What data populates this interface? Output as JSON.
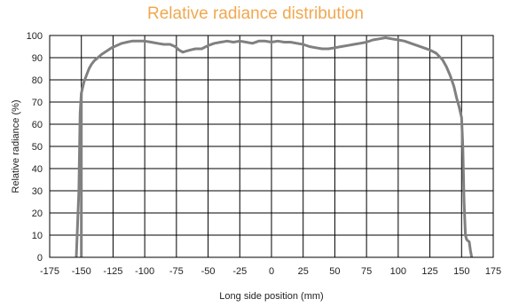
{
  "chart_data": {
    "type": "line",
    "title": "Relative radiance distribution",
    "xlabel": "Long side position (mm)",
    "ylabel": "Relative radiance (%)",
    "xlim": [
      -175,
      175
    ],
    "ylim": [
      0,
      100
    ],
    "xticks": [
      -175,
      -150,
      -125,
      -100,
      -75,
      -50,
      -25,
      0,
      25,
      50,
      75,
      100,
      125,
      150,
      175
    ],
    "yticks": [
      0,
      10,
      20,
      30,
      40,
      50,
      60,
      70,
      80,
      90,
      100
    ],
    "grid": true,
    "series": [
      {
        "color": "#808080",
        "x": [
          -154,
          -152,
          -151,
          -150,
          -148,
          -146,
          -144,
          -142,
          -140,
          -137,
          -134,
          -130,
          -126,
          -122,
          -118,
          -114,
          -110,
          -105,
          -100,
          -95,
          -90,
          -85,
          -80,
          -76,
          -73,
          -70,
          -67,
          -64,
          -60,
          -55,
          -50,
          -45,
          -40,
          -35,
          -30,
          -25,
          -20,
          -15,
          -10,
          -5,
          0,
          5,
          10,
          15,
          20,
          25,
          30,
          35,
          40,
          45,
          50,
          55,
          60,
          65,
          70,
          75,
          80,
          85,
          90,
          95,
          100,
          105,
          110,
          115,
          120,
          125,
          130,
          135,
          138,
          141,
          144,
          146,
          148,
          150,
          151,
          152,
          153,
          154,
          155,
          156,
          157,
          158
        ],
        "y": [
          0,
          30,
          65,
          74,
          79,
          82,
          85,
          87,
          88.5,
          90,
          91.5,
          93,
          94.5,
          95.5,
          96.5,
          97,
          97.5,
          97.5,
          97.5,
          97,
          96.5,
          96,
          96,
          95,
          93.5,
          92.5,
          93,
          93.5,
          94,
          94,
          95.5,
          96.5,
          97,
          97.5,
          97,
          97.5,
          97,
          96.5,
          97.5,
          97.5,
          97,
          97.5,
          97,
          97,
          96.5,
          96,
          95,
          94.5,
          94,
          94,
          94.5,
          95,
          95.5,
          96,
          96.5,
          97,
          98,
          98.5,
          99,
          98.5,
          98,
          97.5,
          96.5,
          95.5,
          94.5,
          93.5,
          92,
          89,
          86,
          82,
          77,
          72,
          68,
          63,
          50,
          25,
          10,
          8,
          7.5,
          7,
          3,
          0
        ]
      },
      {
        "color": "#808080",
        "x": [
          -150,
          -150
        ],
        "y": [
          74,
          0
        ]
      }
    ]
  }
}
